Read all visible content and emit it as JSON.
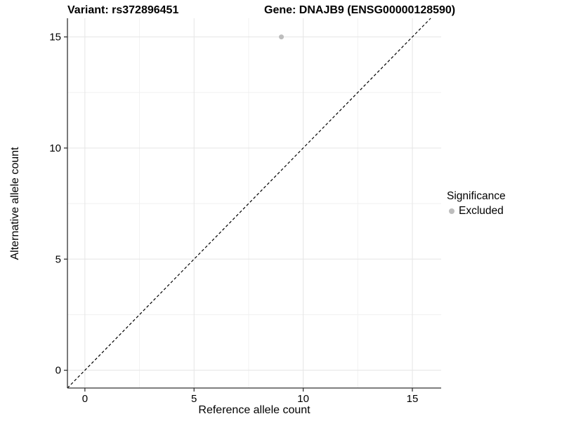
{
  "chart_data": {
    "type": "scatter",
    "title_left": "Variant: rs372896451",
    "title_right": "Gene: DNAJB9 (ENSG00000128590)",
    "xlabel": "Reference allele count",
    "ylabel": "Alternative allele count",
    "xlim": [
      -0.8,
      16.32
    ],
    "ylim": [
      -0.8,
      15.84
    ],
    "x_major_ticks": [
      0,
      5,
      10,
      15
    ],
    "y_major_ticks": [
      0,
      5,
      10,
      15
    ],
    "x_minor_gridlines": [
      2.5,
      7.5,
      12.5
    ],
    "y_minor_gridlines": [
      2.5,
      7.5,
      12.5
    ],
    "grid": "major and minor gridlines on white background, left/bottom axis lines only",
    "points": [
      {
        "x": 9,
        "y": 15,
        "series": "Excluded"
      }
    ],
    "reference_line": {
      "type": "identity",
      "equation": "y = x",
      "style": "dashed",
      "color": "#000000"
    },
    "legend": {
      "title": "Significance",
      "position": "right",
      "entries": [
        {
          "label": "Excluded",
          "color": "#bdbdbd",
          "marker": "circle"
        }
      ]
    },
    "colors": {
      "point": "#bdbdbd",
      "grid_major": "#e5e5e5",
      "grid_minor": "#f1f1f1",
      "axis": "#333333",
      "dashed_line": "#000000",
      "text": "#000000",
      "background": "#ffffff"
    }
  }
}
